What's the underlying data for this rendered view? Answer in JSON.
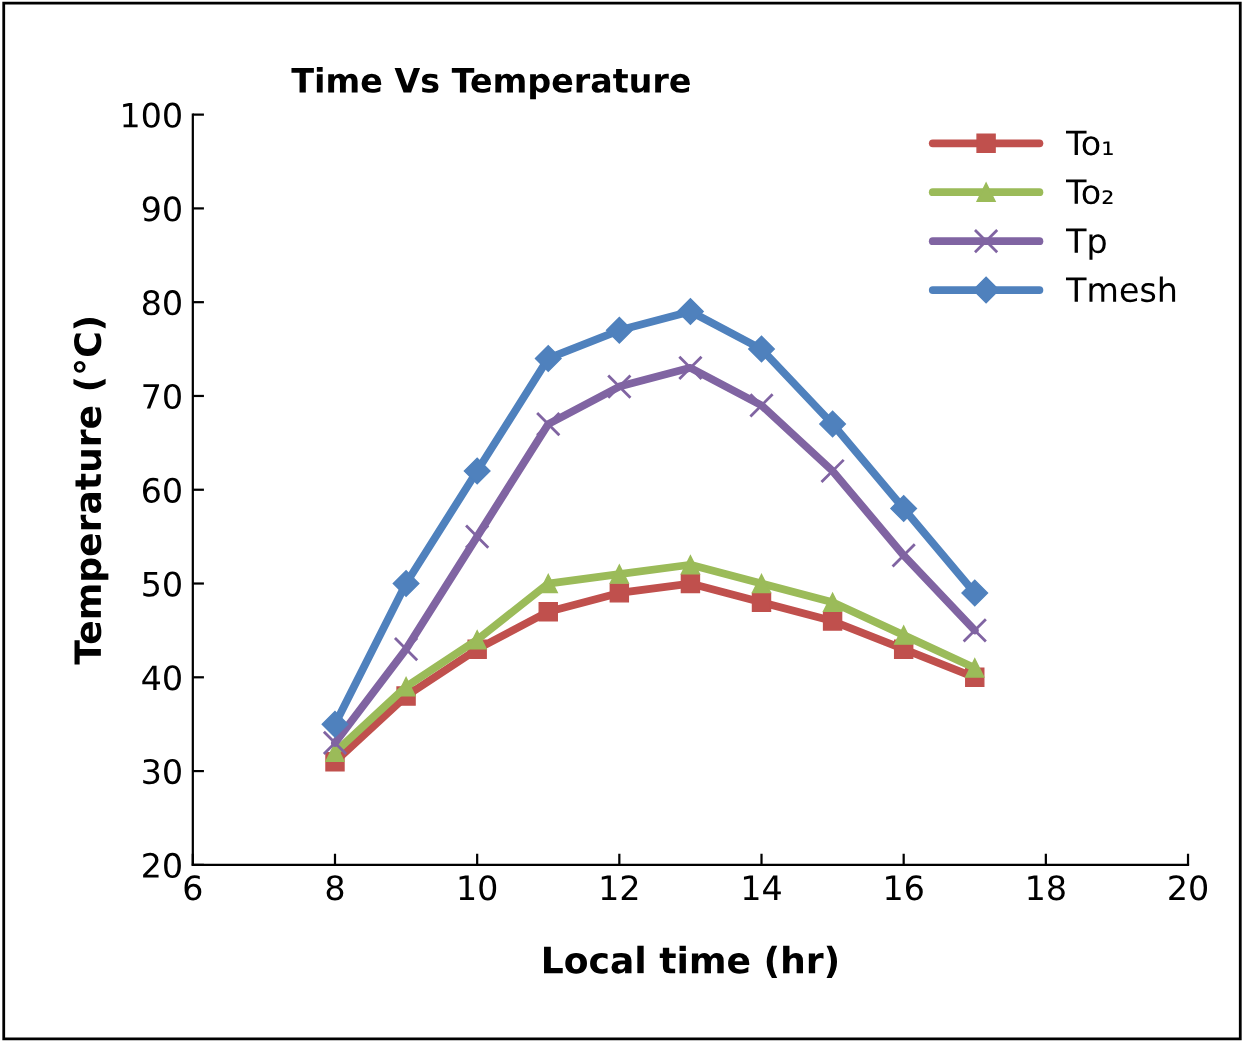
{
  "chart_data": {
    "type": "line",
    "title": "Time Vs Temperature",
    "xlabel": "Local time (hr)",
    "ylabel": "Temperature (°C)",
    "x": [
      8,
      9,
      10,
      11,
      12,
      13,
      14,
      15,
      16,
      17
    ],
    "series": [
      {
        "name": "To₁",
        "color": "#c0504d",
        "marker": "square",
        "values": [
          31,
          38,
          43,
          47,
          49,
          50,
          48,
          46,
          43,
          40
        ]
      },
      {
        "name": "To₂",
        "color": "#9bbb59",
        "marker": "triangle",
        "values": [
          32,
          39,
          44,
          50,
          51,
          52,
          50,
          48,
          44.5,
          41
        ]
      },
      {
        "name": "Tp",
        "color": "#8064a2",
        "marker": "cross",
        "values": [
          33,
          43,
          55,
          67,
          71,
          73,
          69,
          62,
          53,
          45
        ]
      },
      {
        "name": "Tmesh",
        "color": "#4f81bd",
        "marker": "diamond",
        "values": [
          35,
          50,
          62,
          74,
          77,
          79,
          75,
          67,
          58,
          49
        ]
      }
    ],
    "xlim": [
      6,
      20
    ],
    "xticks": [
      6,
      8,
      10,
      12,
      14,
      16,
      18,
      20
    ],
    "ylim": [
      20,
      100
    ],
    "yticks": [
      20,
      30,
      40,
      50,
      60,
      70,
      80,
      90,
      100
    ],
    "grid": false,
    "legend": "top right",
    "line_style": "solid"
  }
}
